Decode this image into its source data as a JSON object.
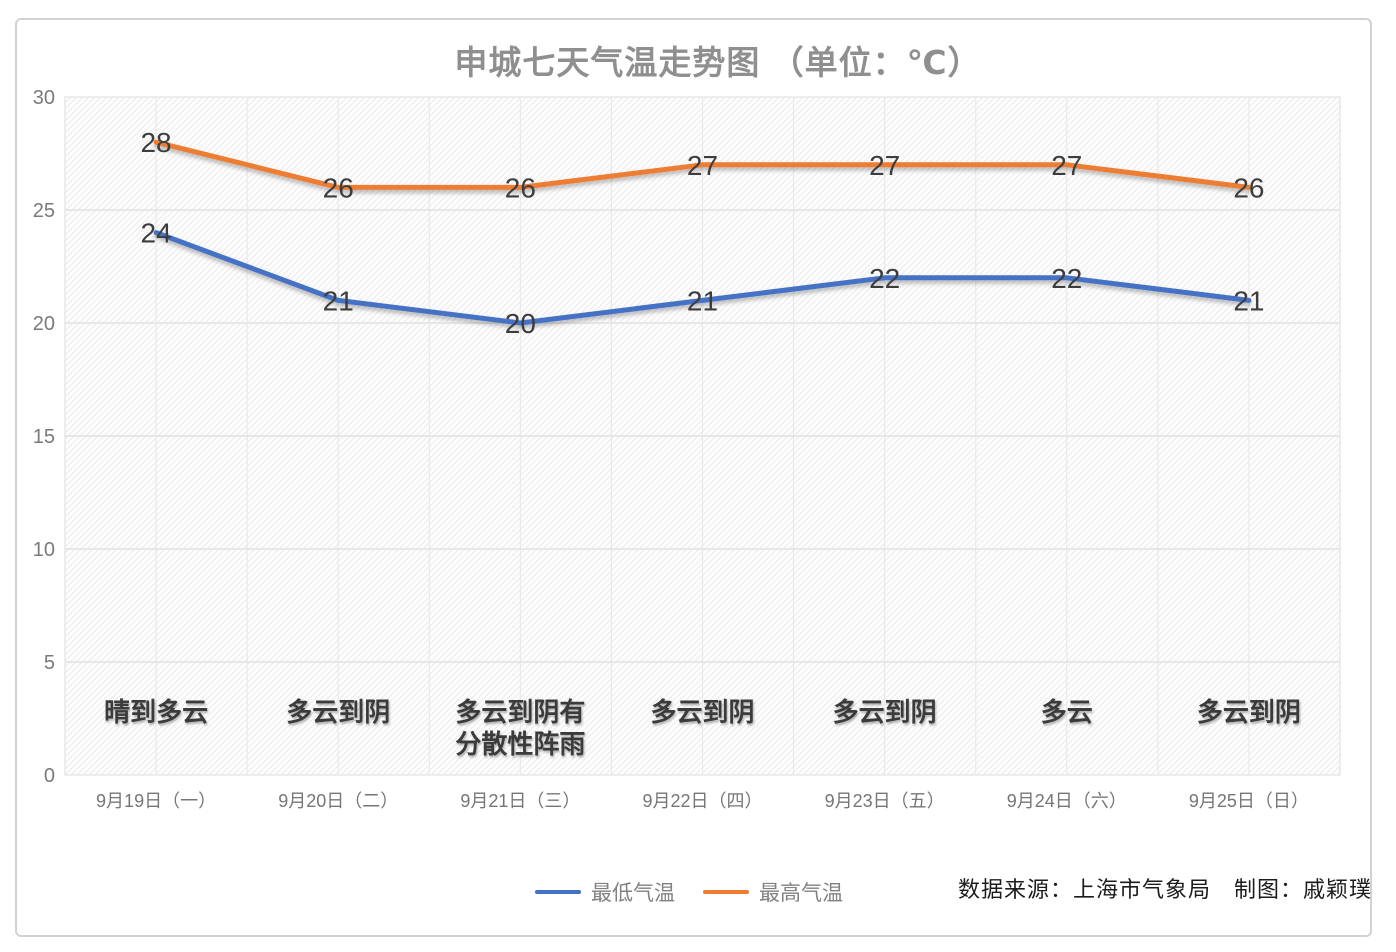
{
  "title": "申城七天气温走势图 （单位：℃）",
  "attribution": "数据来源：上海市气象局　制图：戚颖璞",
  "legend": {
    "min_label": "最低气温",
    "max_label": "最高气温"
  },
  "colors": {
    "min_line": "#4472C4",
    "max_line": "#ED7D31",
    "data_label": "#3d3d3d",
    "weather_label": "#3b3b3b",
    "axis_label": "#7a7a7a",
    "title_gray": "#8f8f8f"
  },
  "chart_data": {
    "type": "line",
    "title": "申城七天气温走势图 （单位：℃）",
    "categories": [
      "9月19日（一）",
      "9月20日（二）",
      "9月21日（三）",
      "9月22日（四）",
      "9月23日（五）",
      "9月24日（六）",
      "9月25日（日）"
    ],
    "weather": [
      "晴到多云",
      "多云到阴",
      "多云到阴有\n分散性阵雨",
      "多云到阴",
      "多云到阴",
      "多云",
      "多云到阴"
    ],
    "series": [
      {
        "name": "最低气温",
        "color": "#4472C4",
        "values": [
          24,
          21,
          20,
          21,
          22,
          22,
          21
        ]
      },
      {
        "name": "最高气温",
        "color": "#ED7D31",
        "values": [
          28,
          26,
          26,
          27,
          27,
          27,
          26
        ]
      }
    ],
    "ylim": [
      0,
      30
    ],
    "ytick_step": 5,
    "yticks": [
      0,
      5,
      10,
      15,
      20,
      25,
      30
    ],
    "grid": true,
    "legend_position": "bottom",
    "data_labels": true
  }
}
